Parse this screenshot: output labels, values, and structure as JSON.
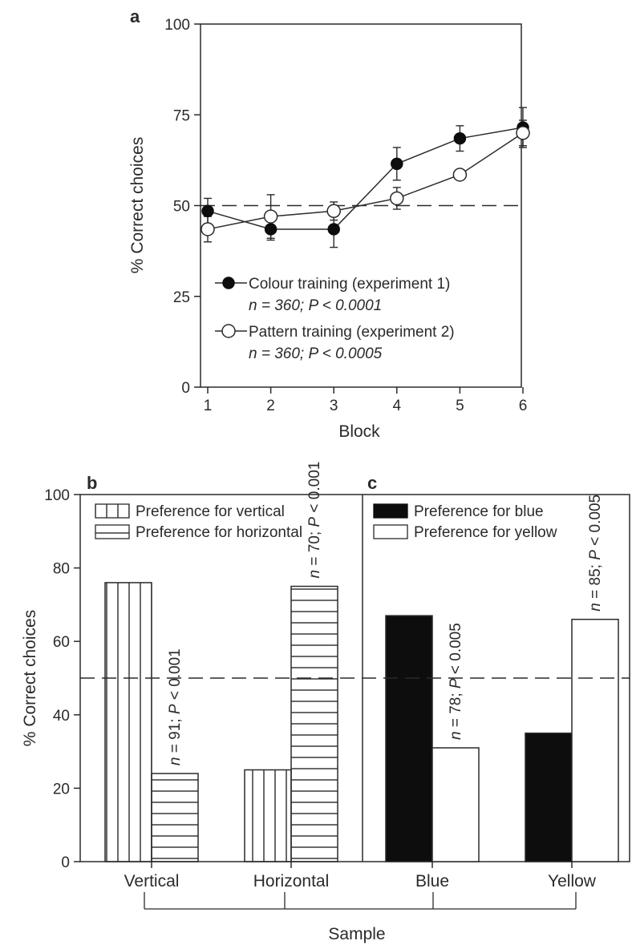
{
  "chart_data": [
    {
      "panel": "a",
      "type": "line",
      "xlabel": "Block",
      "ylabel": "% Correct choices",
      "x": [
        1,
        2,
        3,
        4,
        5,
        6
      ],
      "x_ticks": [
        "1",
        "2",
        "3",
        "4",
        "5",
        "6"
      ],
      "ylim": [
        0,
        100
      ],
      "y_ticks": [
        "0",
        "25",
        "50",
        "75",
        "100"
      ],
      "reference_line": 50,
      "grid": false,
      "legend_position": "bottom-right",
      "series": [
        {
          "name": "Colour training (experiment 1)",
          "stats": "n = 360; P < 0.0001",
          "marker": "filled",
          "values": [
            48.5,
            43.5,
            43.5,
            61.5,
            68.5,
            71.5
          ],
          "errors": [
            3.5,
            3,
            5,
            4.5,
            3.5,
            5.5
          ]
        },
        {
          "name": "Pattern training (experiment 2)",
          "stats": "n = 360; P < 0.0005",
          "marker": "open",
          "values": [
            43.5,
            47,
            48.5,
            52,
            58.5,
            70
          ],
          "errors": [
            3.5,
            6,
            2.5,
            3,
            0,
            3.5
          ]
        }
      ]
    },
    {
      "panel": "b",
      "type": "bar",
      "ylabel": "% Correct choices",
      "ylim": [
        0,
        100
      ],
      "y_ticks": [
        "0",
        "20",
        "40",
        "60",
        "80",
        "100"
      ],
      "reference_line": 50,
      "categories": [
        "Vertical",
        "Horizontal"
      ],
      "legend_position": "top-left",
      "series": [
        {
          "name": "Preference for vertical",
          "fill": "vertical-stripes",
          "values": [
            76,
            25
          ]
        },
        {
          "name": "Preference for horizontal",
          "fill": "horizontal-stripes",
          "values": [
            24,
            75
          ]
        }
      ],
      "annotations": [
        "n = 91; P < 0.001",
        "n = 70; P < 0.001"
      ]
    },
    {
      "panel": "c",
      "type": "bar",
      "ylim": [
        0,
        100
      ],
      "reference_line": 50,
      "categories": [
        "Blue",
        "Yellow"
      ],
      "legend_position": "top-left",
      "series": [
        {
          "name": "Preference for blue",
          "color": "#0d0d0d",
          "values": [
            67,
            35
          ]
        },
        {
          "name": "Preference for yellow",
          "color": "#ffffff",
          "values": [
            31,
            66
          ]
        }
      ],
      "annotations": [
        "n = 78; P < 0.005",
        "n = 85; P < 0.005"
      ]
    }
  ],
  "shared_xlabel": "Sample",
  "colors": {
    "ink": "#2a2a2a",
    "dark_bar": "#0d0d0d",
    "background": "#ffffff"
  }
}
